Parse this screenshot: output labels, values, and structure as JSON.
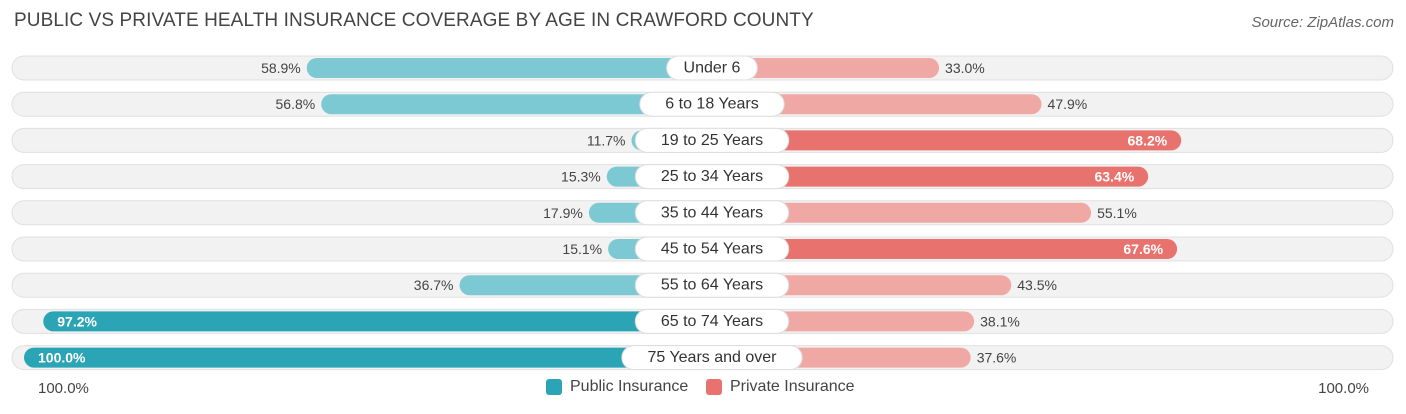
{
  "header": {
    "title": "PUBLIC VS PRIVATE HEALTH INSURANCE COVERAGE BY AGE IN CRAWFORD COUNTY",
    "source": "Source: ZipAtlas.com"
  },
  "legend": {
    "public_label": "Public Insurance",
    "private_label": "Private Insurance"
  },
  "axis": {
    "left_label": "100.0%",
    "right_label": "100.0%"
  },
  "colors": {
    "public_dark": "#2ba5b5",
    "public_light": "#7dc9d3",
    "private_dark": "#e8736e",
    "private_light": "#f0a8a4",
    "track": "#f0f0f0"
  },
  "chart_data": {
    "type": "bar",
    "orientation": "diverging-horizontal",
    "title": "PUBLIC VS PRIVATE HEALTH INSURANCE COVERAGE BY AGE IN CRAWFORD COUNTY",
    "xlim": [
      0,
      100
    ],
    "categories": [
      "Under 6",
      "6 to 18 Years",
      "19 to 25 Years",
      "25 to 34 Years",
      "35 to 44 Years",
      "45 to 54 Years",
      "55 to 64 Years",
      "65 to 74 Years",
      "75 Years and over"
    ],
    "series": [
      {
        "name": "Public Insurance",
        "values": [
          58.9,
          56.8,
          11.7,
          15.3,
          17.9,
          15.1,
          36.7,
          97.2,
          100.0
        ],
        "labels": [
          "58.9%",
          "56.8%",
          "11.7%",
          "15.3%",
          "17.9%",
          "15.1%",
          "36.7%",
          "97.2%",
          "100.0%"
        ]
      },
      {
        "name": "Private Insurance",
        "values": [
          33.0,
          47.9,
          68.2,
          63.4,
          55.1,
          67.6,
          43.5,
          38.1,
          37.6
        ],
        "labels": [
          "33.0%",
          "47.9%",
          "68.2%",
          "63.4%",
          "55.1%",
          "67.6%",
          "43.5%",
          "38.1%",
          "37.6%"
        ]
      }
    ]
  }
}
